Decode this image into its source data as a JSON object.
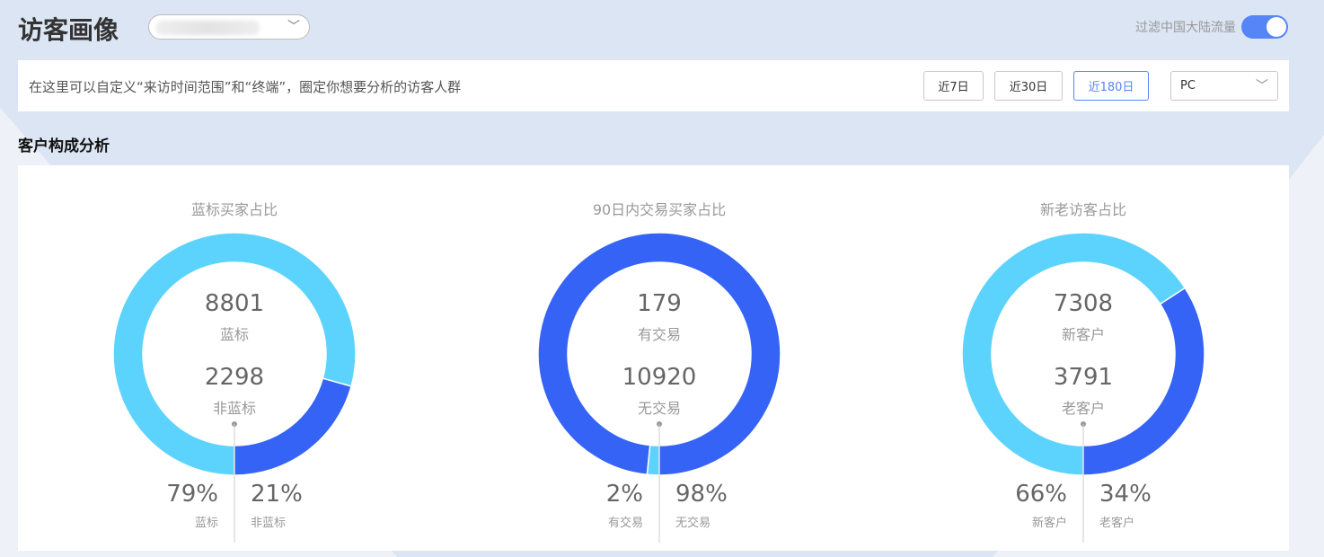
{
  "header": {
    "title": "访客画像",
    "filter_label": "过滤中国大陆流量",
    "filter_on": true
  },
  "toolbar": {
    "hint": "在这里可以自定义“来访时间范围”和“终端”，圈定你想要分析的访客人群",
    "ranges": [
      {
        "label": "近7日",
        "active": false
      },
      {
        "label": "近30日",
        "active": false
      },
      {
        "label": "近180日",
        "active": true
      }
    ],
    "terminal": "PC"
  },
  "section_title": "客户构成分析",
  "colors": {
    "light": "#5cd3fd",
    "dark": "#3563f5"
  },
  "chart_data": [
    {
      "type": "pie",
      "title": "蓝标买家占比",
      "slices": [
        {
          "name": "蓝标",
          "value": 8801,
          "pct": "79%",
          "color": "light"
        },
        {
          "name": "非蓝标",
          "value": 2298,
          "pct": "21%",
          "color": "dark"
        }
      ]
    },
    {
      "type": "pie",
      "title": "90日内交易买家占比",
      "slices": [
        {
          "name": "有交易",
          "value": 179,
          "pct": "2%",
          "color": "light"
        },
        {
          "name": "无交易",
          "value": 10920,
          "pct": "98%",
          "color": "dark"
        }
      ]
    },
    {
      "type": "pie",
      "title": "新老访客占比",
      "slices": [
        {
          "name": "新客户",
          "value": 7308,
          "pct": "66%",
          "color": "light"
        },
        {
          "name": "老客户",
          "value": 3791,
          "pct": "34%",
          "color": "dark"
        }
      ]
    }
  ]
}
